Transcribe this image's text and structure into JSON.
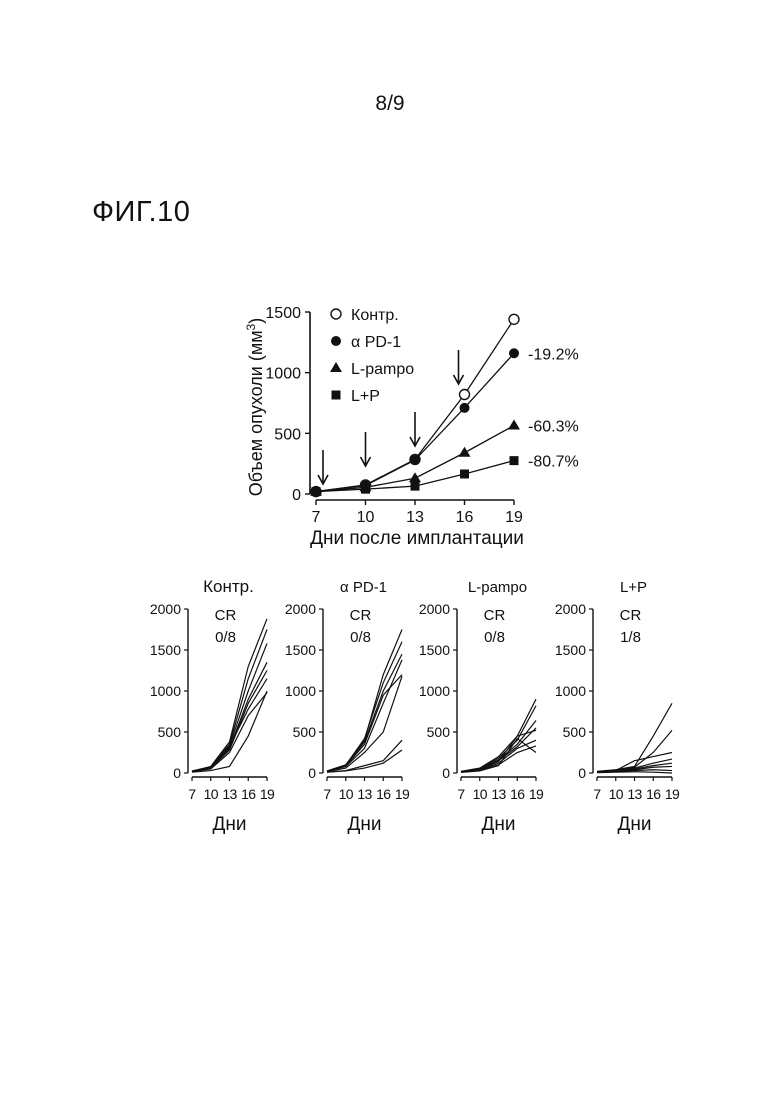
{
  "page": {
    "number": "8/9",
    "figure": "ФИГ.10"
  },
  "chart_data": [
    {
      "type": "line",
      "ylabel": "Объем опухоли (мм",
      "ylabel_sup": "3",
      "ylabel_tail": ")",
      "xlabel": "Дни после имплантации",
      "x": [
        7,
        10,
        13,
        16,
        19
      ],
      "xticks": [
        "7",
        "10",
        "13",
        "16",
        "19"
      ],
      "ylim": [
        0,
        1500
      ],
      "yticks": [
        "0",
        "500",
        "1000",
        "1500"
      ],
      "legend_position": "top-left",
      "series": [
        {
          "name": "Контр.",
          "marker": "circle-open",
          "values": [
            20,
            75,
            285,
            820,
            1440
          ],
          "annotation": ""
        },
        {
          "name": "α PD-1",
          "marker": "circle-filled",
          "values": [
            20,
            70,
            280,
            710,
            1160
          ],
          "annotation": "-19.2%"
        },
        {
          "name": "L-pampo",
          "marker": "triangle-filled",
          "values": [
            20,
            55,
            130,
            340,
            565
          ],
          "annotation": "-60.3%"
        },
        {
          "name": "L+P",
          "marker": "square-filled",
          "values": [
            20,
            40,
            65,
            165,
            275
          ],
          "annotation": "-80.7%"
        }
      ],
      "dosing_days": [
        7,
        10,
        13,
        16
      ]
    },
    {
      "type": "line",
      "title": "Контр.",
      "cr_label": "CR",
      "cr_value": "0/8",
      "xlabel": "Дни",
      "x": [
        7,
        10,
        13,
        16,
        19
      ],
      "xticks": [
        "7",
        "10",
        "13",
        "16",
        "19"
      ],
      "ylim": [
        0,
        2000
      ],
      "yticks": [
        "0",
        "500",
        "1000",
        "1500",
        "2000"
      ],
      "series": [
        {
          "values": [
            20,
            80,
            380,
            1300,
            1880
          ]
        },
        {
          "values": [
            25,
            75,
            350,
            1150,
            1750
          ]
        },
        {
          "values": [
            20,
            70,
            330,
            1000,
            1580
          ]
        },
        {
          "values": [
            22,
            65,
            300,
            900,
            1350
          ]
        },
        {
          "values": [
            18,
            60,
            280,
            850,
            1250
          ]
        },
        {
          "values": [
            20,
            62,
            320,
            780,
            1150
          ]
        },
        {
          "values": [
            15,
            50,
            250,
            700,
            980
          ]
        },
        {
          "values": [
            10,
            30,
            80,
            450,
            1000
          ]
        }
      ]
    },
    {
      "type": "line",
      "title": "α PD-1",
      "cr_label": "CR",
      "cr_value": "0/8",
      "xlabel": "Дни",
      "x": [
        7,
        10,
        13,
        16,
        19
      ],
      "xticks": [
        "7",
        "10",
        "13",
        "16",
        "19"
      ],
      "ylim": [
        0,
        2000
      ],
      "yticks": [
        "0",
        "500",
        "1000",
        "1500",
        "2000"
      ],
      "series": [
        {
          "values": [
            25,
            100,
            400,
            1200,
            1750
          ]
        },
        {
          "values": [
            22,
            95,
            420,
            1100,
            1600
          ]
        },
        {
          "values": [
            20,
            90,
            380,
            1000,
            1450
          ]
        },
        {
          "values": [
            20,
            85,
            350,
            950,
            1200
          ]
        },
        {
          "values": [
            18,
            80,
            300,
            850,
            1380
          ]
        },
        {
          "values": [
            15,
            60,
            250,
            500,
            1180
          ]
        },
        {
          "values": [
            10,
            30,
            90,
            150,
            400
          ]
        },
        {
          "values": [
            10,
            25,
            60,
            120,
            280
          ]
        }
      ]
    },
    {
      "type": "line",
      "title": "L-pampo",
      "cr_label": "CR",
      "cr_value": "0/8",
      "xlabel": "Дни",
      "x": [
        7,
        10,
        13,
        16,
        19
      ],
      "xticks": [
        "7",
        "10",
        "13",
        "16",
        "19"
      ],
      "ylim": [
        0,
        2000
      ],
      "yticks": [
        "0",
        "500",
        "1000",
        "1500",
        "2000"
      ],
      "series": [
        {
          "values": [
            20,
            60,
            200,
            450,
            900
          ]
        },
        {
          "values": [
            18,
            55,
            180,
            400,
            820
          ]
        },
        {
          "values": [
            15,
            50,
            160,
            350,
            640
          ]
        },
        {
          "values": [
            15,
            45,
            150,
            320,
            550
          ]
        },
        {
          "values": [
            12,
            40,
            140,
            450,
            520
          ]
        },
        {
          "values": [
            10,
            35,
            120,
            300,
            400
          ]
        },
        {
          "values": [
            10,
            30,
            100,
            250,
            330
          ]
        },
        {
          "values": [
            8,
            25,
            90,
            420,
            250
          ]
        }
      ]
    },
    {
      "type": "line",
      "title": "L+P",
      "cr_label": "CR",
      "cr_value": "1/8",
      "xlabel": "Дни",
      "x": [
        7,
        10,
        13,
        16,
        19
      ],
      "xticks": [
        "7",
        "10",
        "13",
        "16",
        "19"
      ],
      "ylim": [
        0,
        2000
      ],
      "yticks": [
        "0",
        "500",
        "1000",
        "1500",
        "2000"
      ],
      "series": [
        {
          "values": [
            20,
            40,
            80,
            450,
            850
          ]
        },
        {
          "values": [
            15,
            35,
            70,
            250,
            520
          ]
        },
        {
          "values": [
            15,
            30,
            150,
            200,
            250
          ]
        },
        {
          "values": [
            12,
            25,
            60,
            120,
            170
          ]
        },
        {
          "values": [
            10,
            20,
            50,
            90,
            120
          ]
        },
        {
          "values": [
            10,
            18,
            40,
            70,
            80
          ]
        },
        {
          "values": [
            8,
            15,
            30,
            40,
            30
          ]
        },
        {
          "values": [
            5,
            10,
            15,
            10,
            0
          ]
        }
      ]
    }
  ]
}
